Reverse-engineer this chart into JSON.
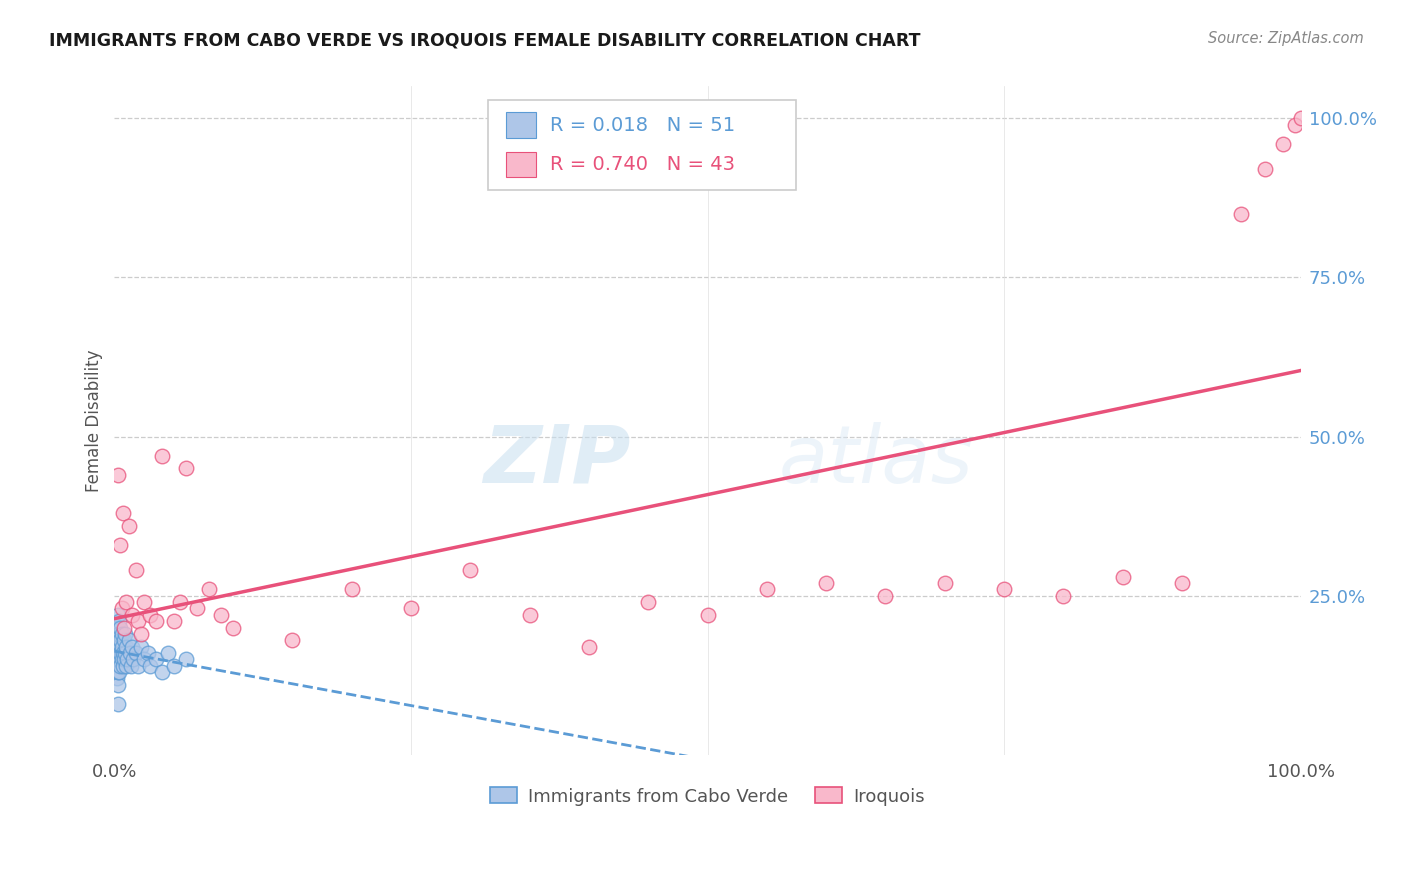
{
  "title": "IMMIGRANTS FROM CABO VERDE VS IROQUOIS FEMALE DISABILITY CORRELATION CHART",
  "source": "Source: ZipAtlas.com",
  "ylabel": "Female Disability",
  "legend_labels": [
    "Immigrants from Cabo Verde",
    "Iroquois"
  ],
  "cabo_verde_color": "#aec6e8",
  "iroquois_color": "#f9b8cb",
  "cabo_verde_line_color": "#5b9bd5",
  "iroquois_line_color": "#e8517a",
  "watermark_zip": "ZIP",
  "watermark_atlas": "atlas",
  "background_color": "#ffffff",
  "cabo_verde_x": [
    0.001,
    0.001,
    0.001,
    0.002,
    0.002,
    0.002,
    0.002,
    0.003,
    0.003,
    0.003,
    0.003,
    0.003,
    0.003,
    0.004,
    0.004,
    0.004,
    0.004,
    0.004,
    0.005,
    0.005,
    0.005,
    0.005,
    0.006,
    0.006,
    0.006,
    0.007,
    0.007,
    0.008,
    0.008,
    0.009,
    0.009,
    0.01,
    0.01,
    0.011,
    0.012,
    0.013,
    0.014,
    0.015,
    0.016,
    0.018,
    0.02,
    0.022,
    0.025,
    0.028,
    0.03,
    0.035,
    0.04,
    0.045,
    0.05,
    0.06,
    0.003
  ],
  "cabo_verde_y": [
    0.14,
    0.16,
    0.18,
    0.12,
    0.15,
    0.17,
    0.2,
    0.11,
    0.13,
    0.15,
    0.17,
    0.19,
    0.22,
    0.13,
    0.15,
    0.17,
    0.19,
    0.21,
    0.14,
    0.16,
    0.18,
    0.2,
    0.15,
    0.17,
    0.19,
    0.14,
    0.16,
    0.15,
    0.18,
    0.16,
    0.19,
    0.14,
    0.17,
    0.15,
    0.18,
    0.16,
    0.14,
    0.17,
    0.15,
    0.16,
    0.14,
    0.17,
    0.15,
    0.16,
    0.14,
    0.15,
    0.13,
    0.16,
    0.14,
    0.15,
    0.08
  ],
  "iroquois_x": [
    0.003,
    0.005,
    0.006,
    0.007,
    0.008,
    0.01,
    0.012,
    0.015,
    0.018,
    0.02,
    0.022,
    0.025,
    0.03,
    0.035,
    0.04,
    0.05,
    0.055,
    0.06,
    0.07,
    0.08,
    0.09,
    0.1,
    0.15,
    0.2,
    0.25,
    0.3,
    0.35,
    0.4,
    0.45,
    0.5,
    0.55,
    0.6,
    0.65,
    0.7,
    0.75,
    0.8,
    0.85,
    0.9,
    0.95,
    0.97,
    0.985,
    0.995,
    1.0
  ],
  "iroquois_y": [
    0.44,
    0.33,
    0.23,
    0.38,
    0.2,
    0.24,
    0.36,
    0.22,
    0.29,
    0.21,
    0.19,
    0.24,
    0.22,
    0.21,
    0.47,
    0.21,
    0.24,
    0.45,
    0.23,
    0.26,
    0.22,
    0.2,
    0.18,
    0.26,
    0.23,
    0.29,
    0.22,
    0.17,
    0.24,
    0.22,
    0.26,
    0.27,
    0.25,
    0.27,
    0.26,
    0.25,
    0.28,
    0.27,
    0.85,
    0.92,
    0.96,
    0.99,
    1.0
  ],
  "xlim": [
    0.0,
    1.0
  ],
  "ylim": [
    0.0,
    1.05
  ],
  "yticks": [
    0.0,
    0.25,
    0.5,
    0.75,
    1.0
  ],
  "ytick_labels": [
    "",
    "25.0%",
    "50.0%",
    "75.0%",
    "100.0%"
  ],
  "xticks": [
    0.0,
    0.25,
    0.5,
    0.75,
    1.0
  ],
  "xtick_labels": [
    "0.0%",
    "",
    "",
    "",
    "100.0%"
  ]
}
